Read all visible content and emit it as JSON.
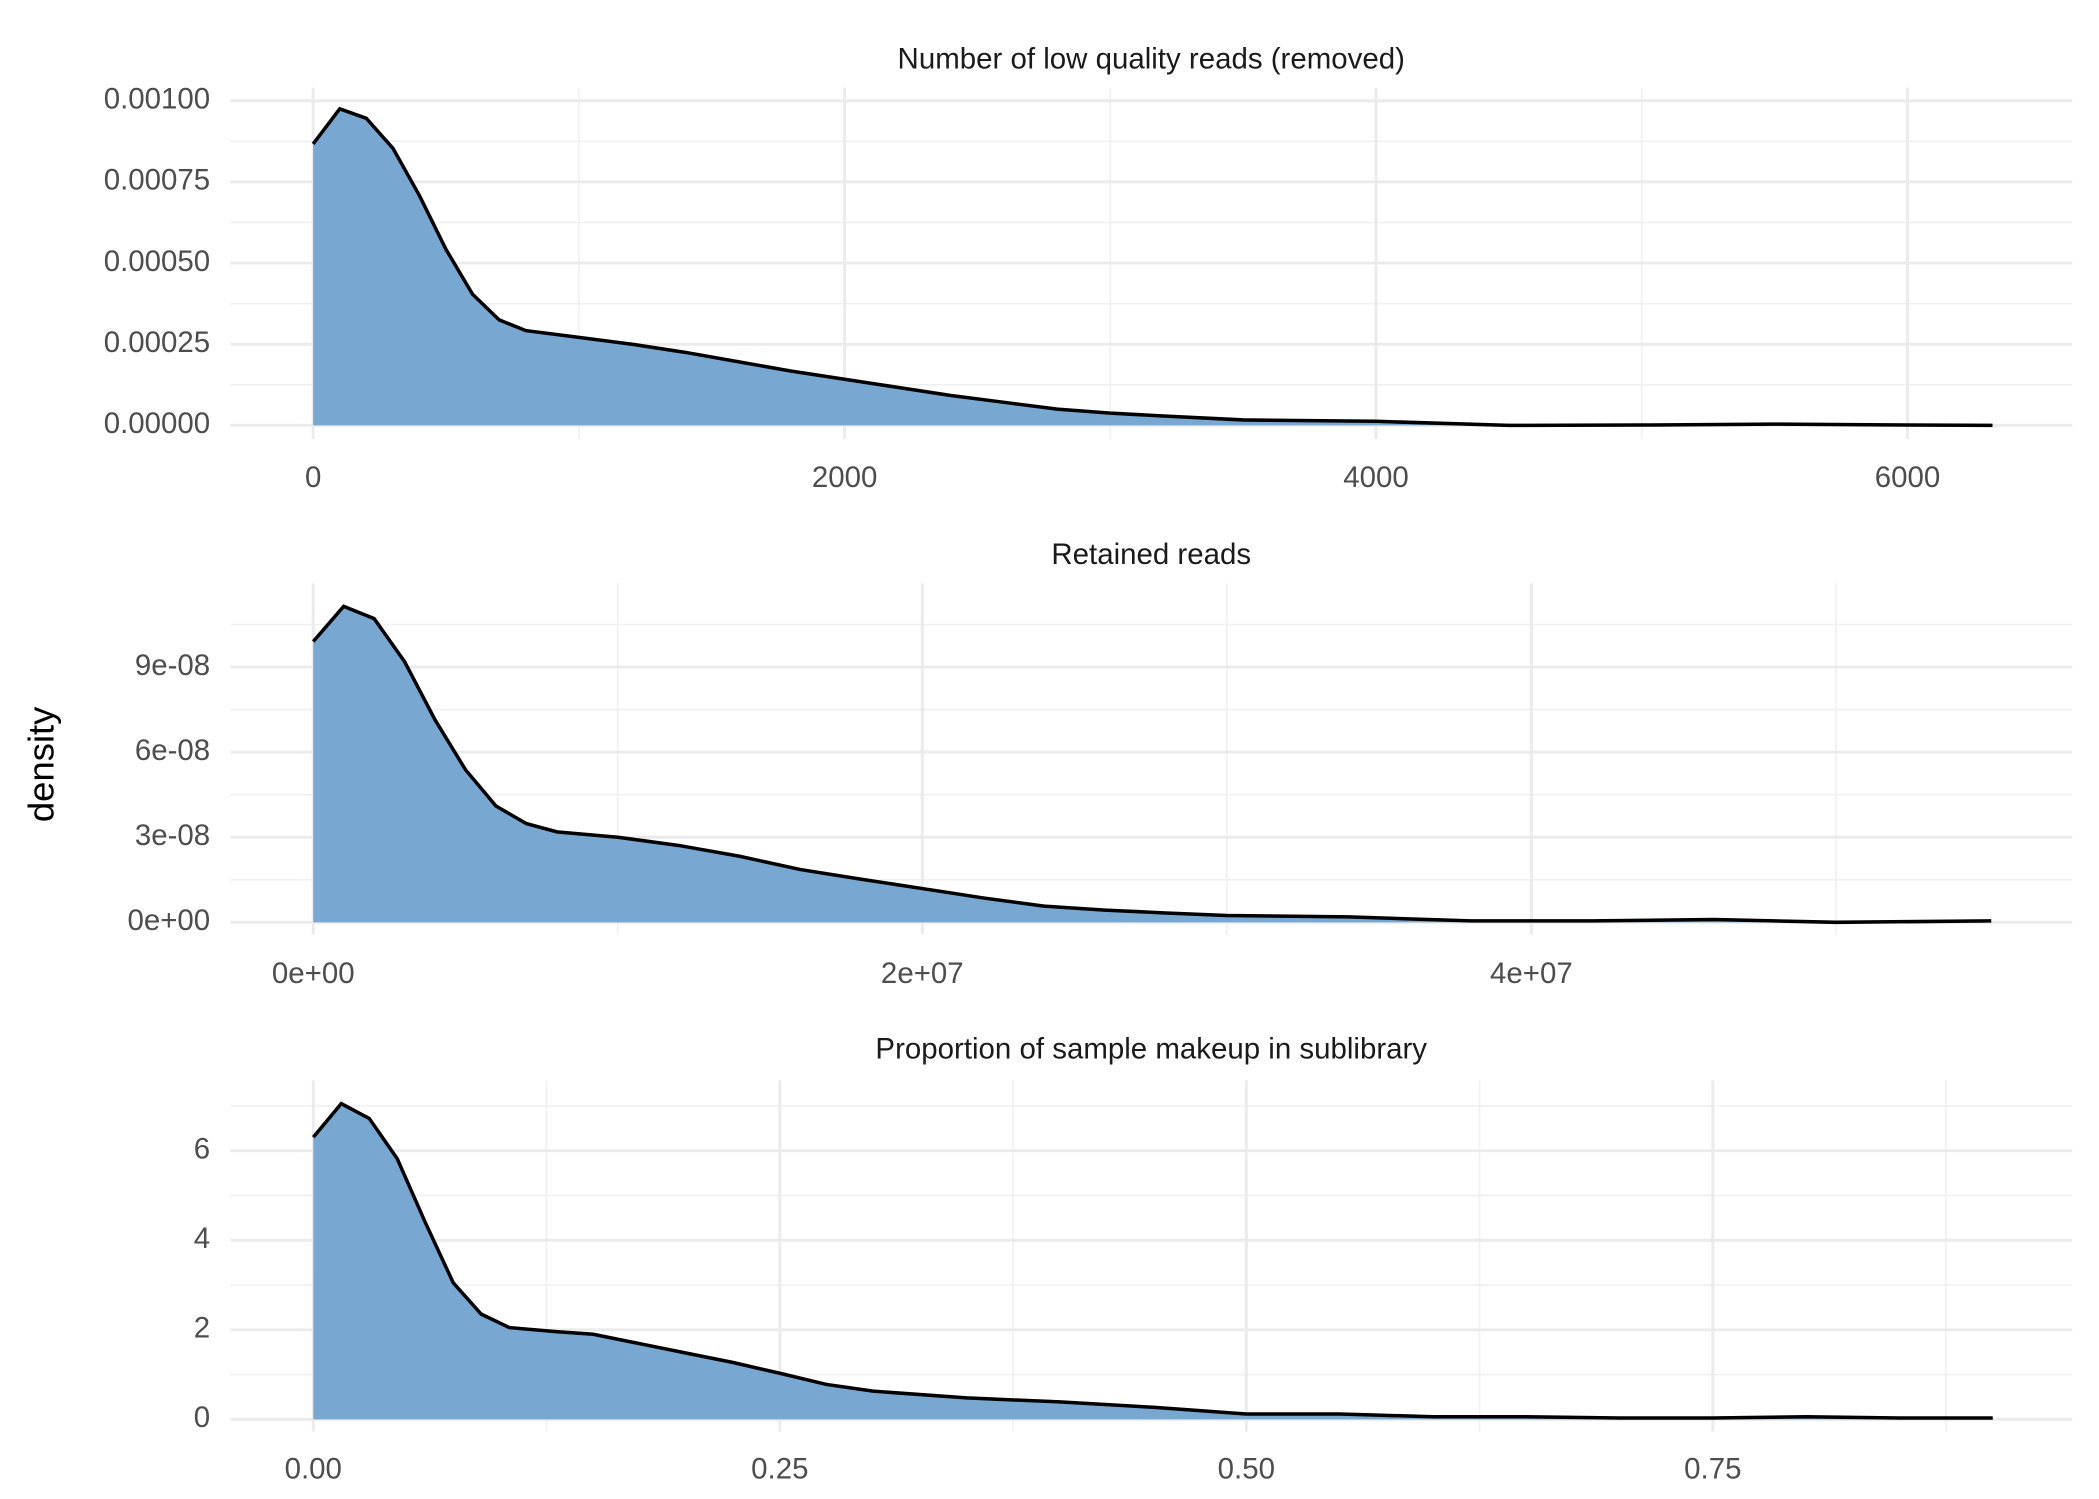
{
  "y_axis_label": "density",
  "chart_data": [
    {
      "type": "area",
      "title": "Number of low quality reads (removed)",
      "color": "#78a7d2",
      "line_color": "#000000",
      "grid": true,
      "x": [
        0,
        100,
        200,
        300,
        400,
        500,
        600,
        700,
        800,
        1000,
        1200,
        1400,
        1600,
        1800,
        2000,
        2200,
        2400,
        2600,
        2800,
        3000,
        3200,
        3500,
        4000,
        4500,
        5000,
        5500,
        6000,
        6320
      ],
      "values": [
        0.000867,
        0.000975,
        0.000946,
        0.000854,
        0.000708,
        0.000542,
        0.000404,
        0.000325,
        0.000292,
        0.000271,
        0.00025,
        0.000225,
        0.000196,
        0.000167,
        0.000142,
        0.000117,
        9.2e-05,
        7.1e-05,
        5e-05,
        3.75e-05,
        2.9e-05,
        1.67e-05,
        1.25e-05,
        0,
        1e-06,
        4e-06,
        1e-06,
        0
      ],
      "xlim": [
        -312,
        6620
      ],
      "ylim": [
        -4.17e-05,
        0.00104
      ],
      "xticks": [
        0,
        2000,
        4000,
        6000
      ],
      "yticks": [
        {
          "value": 0,
          "label": "0.00000"
        },
        {
          "value": 0.00025,
          "label": "0.00025"
        },
        {
          "value": 0.0005,
          "label": "0.00050"
        },
        {
          "value": 0.00075,
          "label": "0.00075"
        },
        {
          "value": 0.001,
          "label": "0.00100"
        }
      ]
    },
    {
      "type": "area",
      "title": "Retained reads",
      "color": "#78a7d2",
      "line_color": "#000000",
      "grid": true,
      "x": [
        0,
        1000000,
        2000000,
        3000000,
        4000000,
        5000000,
        6000000,
        7000000,
        8000000,
        10000000,
        12000000,
        14000000,
        16000000,
        18000000,
        20000000,
        22000000,
        24000000,
        26000000,
        28000000,
        30000000,
        34000000,
        38000000,
        42000000,
        46000000,
        50000000,
        55100000
      ],
      "values": [
        9.9e-08,
        1.114e-07,
        1.071e-07,
        9.19e-08,
        7.14e-08,
        5.38e-08,
        4.1e-08,
        3.48e-08,
        3.19e-08,
        3e-08,
        2.71e-08,
        2.33e-08,
        1.86e-08,
        1.52e-08,
        1.19e-08,
        8.6e-09,
        5.7e-09,
        4.3e-09,
        3.3e-09,
        2.4e-09,
        1.9e-09,
        5e-10,
        5e-10,
        1e-09,
        0,
        5e-10
      ],
      "xlim": [
        -2725000,
        57760000
      ],
      "ylim": [
        -4.3e-09,
        1.195e-07
      ],
      "xticks": [
        {
          "value": 0,
          "label": "0e+00"
        },
        {
          "value": 20000000,
          "label": "2e+07"
        },
        {
          "value": 40000000,
          "label": "4e+07"
        }
      ],
      "yticks": [
        {
          "value": 0,
          "label": "0e+00"
        },
        {
          "value": 3e-08,
          "label": "3e-08"
        },
        {
          "value": 6e-08,
          "label": "6e-08"
        },
        {
          "value": 9e-08,
          "label": "9e-08"
        }
      ]
    },
    {
      "type": "area",
      "title": "Proportion of sample makeup in sublibrary",
      "color": "#78a7d2",
      "line_color": "#000000",
      "grid": true,
      "x": [
        0,
        0.015,
        0.03,
        0.045,
        0.06,
        0.075,
        0.09,
        0.105,
        0.13,
        0.15,
        0.175,
        0.2,
        0.225,
        0.25,
        0.275,
        0.3,
        0.35,
        0.4,
        0.45,
        0.5,
        0.55,
        0.6,
        0.65,
        0.7,
        0.75,
        0.8,
        0.85,
        0.9
      ],
      "values": [
        6.3,
        7.05,
        6.72,
        5.82,
        4.4,
        3.05,
        2.35,
        2.05,
        1.96,
        1.9,
        1.69,
        1.48,
        1.27,
        1.03,
        0.78,
        0.63,
        0.48,
        0.39,
        0.27,
        0.12,
        0.12,
        0.06,
        0.06,
        0.03,
        0.03,
        0.06,
        0.03,
        0.03
      ],
      "xlim": [
        -0.0445,
        0.9426
      ],
      "ylim": [
        -0.27,
        7.57
      ],
      "xticks": [
        {
          "value": 0,
          "label": "0.00"
        },
        {
          "value": 0.25,
          "label": "0.25"
        },
        {
          "value": 0.5,
          "label": "0.50"
        },
        {
          "value": 0.75,
          "label": "0.75"
        }
      ],
      "yticks": [
        0,
        2,
        4,
        6
      ]
    }
  ]
}
